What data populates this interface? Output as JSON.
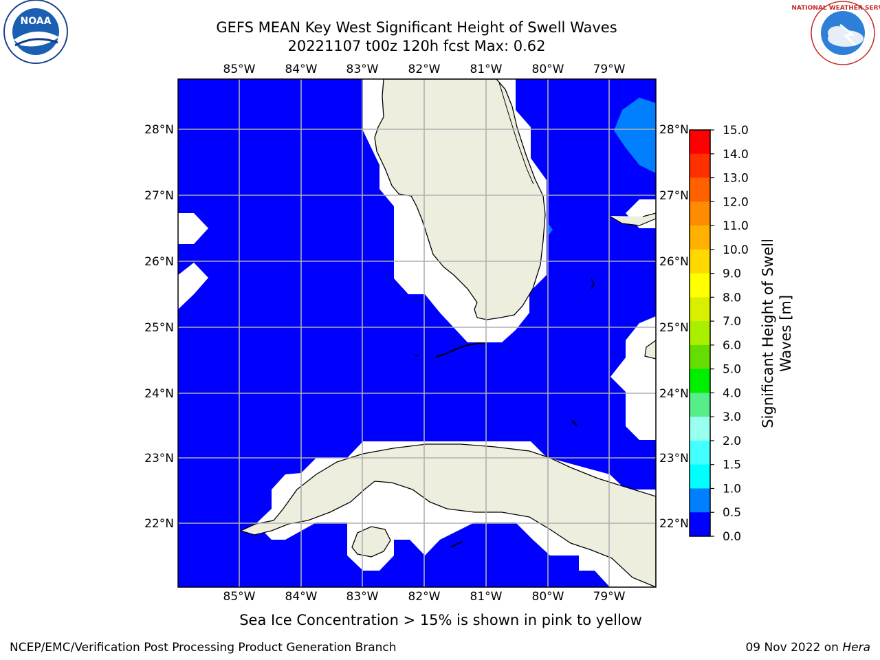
{
  "header": {
    "title_line1": "GEFS MEAN Key West Significant Height of Swell Waves",
    "title_line2": "20221107 t00z 120h fcst   Max: 0.62"
  },
  "map": {
    "lon_ticks": [
      "85°W",
      "84°W",
      "83°W",
      "82°W",
      "81°W",
      "80°W",
      "79°W"
    ],
    "lat_ticks": [
      "28°N",
      "27°N",
      "26°N",
      "25°N",
      "24°N",
      "23°N",
      "22°N"
    ],
    "colors": {
      "ocean_0_0p5": "#0000ff",
      "band_0p5_1": "#0080ff",
      "land": "#eeeedf",
      "masked": "#ffffff",
      "grid": "#b0b0b0"
    }
  },
  "colorbar": {
    "label": "Significant Height of Swell Waves [m]",
    "label_line1": "Significant Height of Swell",
    "label_line2": "Waves [m]",
    "ticks": [
      "15.0",
      "14.0",
      "13.0",
      "12.0",
      "11.0",
      "10.0",
      "9.0",
      "8.0",
      "7.0",
      "6.0",
      "5.0",
      "4.0",
      "3.0",
      "2.0",
      "1.5",
      "1.0",
      "0.5",
      "0.0"
    ],
    "band_colors": [
      "#ff0000",
      "#ff3000",
      "#ff6000",
      "#ff8c00",
      "#ffb000",
      "#ffd800",
      "#ffff00",
      "#d8f000",
      "#aaee00",
      "#66dd00",
      "#00ee00",
      "#55ee88",
      "#99ffee",
      "#44ffff",
      "#00ffff",
      "#0080ff",
      "#0000ff"
    ]
  },
  "logos": {
    "left_logo_text": "NOAA",
    "right_logo_text": "NATIONAL WEATHER SERVICE"
  },
  "note": "Sea Ice Concentration > 15% is shown in pink to yellow",
  "footer": {
    "left": "NCEP/EMC/Verification Post Processing Product Generation Branch",
    "date": "09 Nov 2022 on ",
    "host": "Hera"
  }
}
